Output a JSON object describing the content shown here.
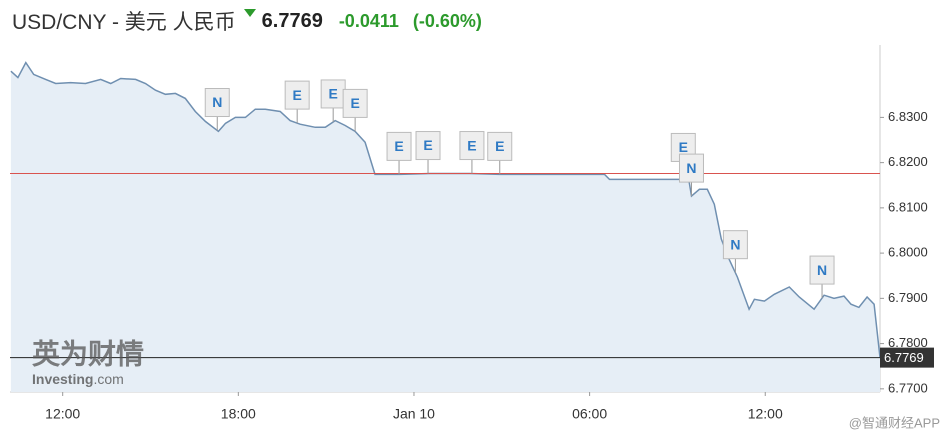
{
  "header": {
    "pair": "USD/CNY - 美元 人民币",
    "change": "-0.0411",
    "change_percent": "(-0.60%)"
  },
  "chart_data": {
    "type": "area",
    "price": 6.7769,
    "price_label": "6.7769",
    "x": [
      10.23,
      10.47,
      10.74,
      11.01,
      11.42,
      11.76,
      12.27,
      12.78,
      13.3,
      13.64,
      13.98,
      14.49,
      14.83,
      15.17,
      15.51,
      15.85,
      16.19,
      16.53,
      16.88,
      17.32,
      17.56,
      17.9,
      18.24,
      18.58,
      18.92,
      19.43,
      19.77,
      20.11,
      20.63,
      20.97,
      21.31,
      21.65,
      21.99,
      22.33,
      22.67,
      23.52,
      24.55,
      25.91,
      26.93,
      28.98,
      30.51,
      30.68,
      31.7,
      33.07,
      33.34,
      33.48,
      33.75,
      34.02,
      34.26,
      34.5,
      34.77,
      35.05,
      35.45,
      35.63,
      35.97,
      36.31,
      36.82,
      37.16,
      37.67,
      38.01,
      38.35,
      38.69,
      38.93,
      39.2,
      39.48,
      39.72,
      39.92
    ],
    "series": [
      {
        "name": "USD/CNY",
        "color": "#6f8fb0",
        "fill": "#e6eef6",
        "values": [
          6.8402,
          6.8388,
          6.8421,
          6.8395,
          6.8384,
          6.8375,
          6.8377,
          6.8375,
          6.8384,
          6.8375,
          6.8386,
          6.8384,
          6.8375,
          6.836,
          6.8351,
          6.8353,
          6.8342,
          6.8313,
          6.8291,
          6.8269,
          6.8287,
          6.83,
          6.83,
          6.8318,
          6.8318,
          6.8313,
          6.8293,
          6.8285,
          6.8278,
          6.8278,
          6.8293,
          6.8282,
          6.8269,
          6.8245,
          6.8174,
          6.8174,
          6.8176,
          6.8176,
          6.8174,
          6.8174,
          6.8174,
          6.8163,
          6.8163,
          6.8163,
          6.8181,
          6.8126,
          6.8141,
          6.8141,
          6.8108,
          6.8031,
          6.7986,
          6.7947,
          6.7876,
          6.7898,
          6.7894,
          6.7909,
          6.7925,
          6.7903,
          6.7876,
          6.7907,
          6.79,
          6.7905,
          6.7887,
          6.788,
          6.7903,
          6.7887,
          6.7769
        ]
      }
    ],
    "reference_line": {
      "value": 6.8176,
      "color": "#d9534f"
    },
    "events": [
      {
        "label": "N",
        "x": 17.28
      },
      {
        "label": "E",
        "x": 20.01
      },
      {
        "label": "E",
        "x": 21.24
      },
      {
        "label": "E",
        "x": 21.99
      },
      {
        "label": "E",
        "x": 23.49
      },
      {
        "label": "E",
        "x": 24.48
      },
      {
        "label": "E",
        "x": 25.98
      },
      {
        "label": "E",
        "x": 26.93
      },
      {
        "label": "E",
        "x": 33.2
      },
      {
        "label": "N",
        "x": 33.48
      },
      {
        "label": "N",
        "x": 34.98
      },
      {
        "label": "N",
        "x": 37.94
      }
    ],
    "xlim": [
      10.2,
      39.92
    ],
    "xticks": [
      {
        "value": 12,
        "label": "12:00"
      },
      {
        "value": 18,
        "label": "18:00"
      },
      {
        "value": 24,
        "label": "Jan 10"
      },
      {
        "value": 30,
        "label": "06:00"
      },
      {
        "value": 36,
        "label": "12:00"
      }
    ],
    "ylim": [
      6.7693,
      6.846
    ],
    "yticks": [
      {
        "value": 6.77,
        "label": "6.7700"
      },
      {
        "value": 6.78,
        "label": "6.7800"
      },
      {
        "value": 6.79,
        "label": "6.7900"
      },
      {
        "value": 6.8,
        "label": "6.8000"
      },
      {
        "value": 6.81,
        "label": "6.8100"
      },
      {
        "value": 6.82,
        "label": "6.8200"
      },
      {
        "value": 6.83,
        "label": "6.8300"
      }
    ],
    "watermark": {
      "brand_cn": "英为财情",
      "brand": "Investing",
      "brand_suffix": ".com",
      "source": "@智通财经APP"
    }
  }
}
